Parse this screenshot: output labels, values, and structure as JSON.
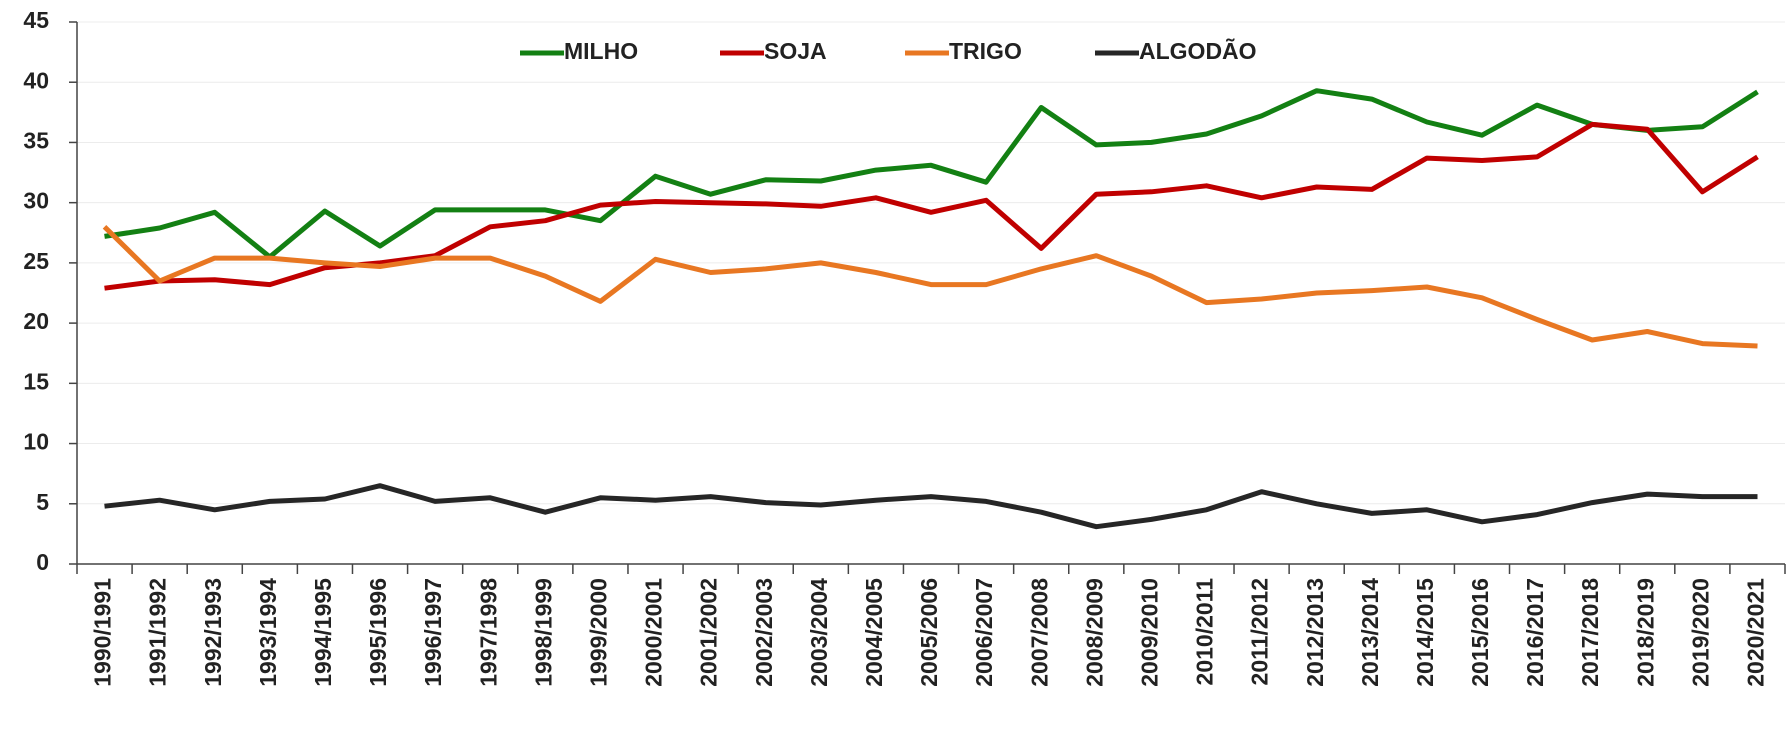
{
  "chart_data": {
    "type": "line",
    "categories": [
      "1990/1991",
      "1991/1992",
      "1992/1993",
      "1993/1994",
      "1994/1995",
      "1995/1996",
      "1996/1997",
      "1997/1998",
      "1998/1999",
      "1999/2000",
      "2000/2001",
      "2001/2002",
      "2002/2003",
      "2003/2004",
      "2004/2005",
      "2005/2006",
      "2006/2007",
      "2007/2008",
      "2008/2009",
      "2009/2010",
      "2010/2011",
      "2011/2012",
      "2012/2013",
      "2013/2014",
      "2014/2015",
      "2015/2016",
      "2016/2017",
      "2017/2018",
      "2018/2019",
      "2019/2020",
      "2020/2021"
    ],
    "series": [
      {
        "name": "MILHO",
        "color": "#138013",
        "values": [
          27.2,
          27.9,
          29.2,
          25.5,
          29.3,
          26.4,
          29.4,
          29.4,
          29.4,
          28.5,
          32.2,
          30.7,
          31.9,
          31.8,
          32.7,
          33.1,
          31.7,
          37.9,
          34.8,
          35.0,
          35.7,
          37.2,
          39.3,
          38.6,
          36.7,
          35.6,
          38.1,
          36.5,
          36.0,
          36.3,
          39.2
        ]
      },
      {
        "name": "SOJA",
        "color": "#c00000",
        "values": [
          22.9,
          23.5,
          23.6,
          23.2,
          24.6,
          25.0,
          25.6,
          28.0,
          28.5,
          29.8,
          30.1,
          30.0,
          29.9,
          29.7,
          30.4,
          29.2,
          30.2,
          26.2,
          30.7,
          30.9,
          31.4,
          30.4,
          31.3,
          31.1,
          33.7,
          33.5,
          33.8,
          36.5,
          36.1,
          30.9,
          33.8
        ]
      },
      {
        "name": "TRIGO",
        "color": "#e87722",
        "values": [
          28.0,
          23.5,
          25.4,
          25.4,
          25.0,
          24.7,
          25.4,
          25.4,
          23.9,
          21.8,
          25.3,
          24.2,
          24.5,
          25.0,
          24.2,
          23.2,
          23.2,
          24.5,
          25.6,
          23.9,
          21.7,
          22.0,
          22.5,
          22.7,
          23.0,
          22.1,
          20.3,
          18.6,
          19.3,
          18.3,
          18.1
        ]
      },
      {
        "name": "ALGODÃO",
        "color": "#262626",
        "values": [
          4.8,
          5.3,
          4.5,
          5.2,
          5.4,
          6.5,
          5.2,
          5.5,
          4.3,
          5.5,
          5.3,
          5.6,
          5.1,
          4.9,
          5.3,
          5.6,
          5.2,
          4.3,
          3.1,
          3.7,
          4.5,
          6.0,
          5.0,
          4.2,
          4.5,
          3.5,
          4.1,
          5.1,
          5.8,
          5.6,
          5.6
        ]
      }
    ],
    "ylim": [
      0,
      45
    ],
    "yticks": [
      0,
      5,
      10,
      15,
      20,
      25,
      30,
      35,
      40,
      45
    ],
    "grid": true,
    "legend": "top"
  }
}
